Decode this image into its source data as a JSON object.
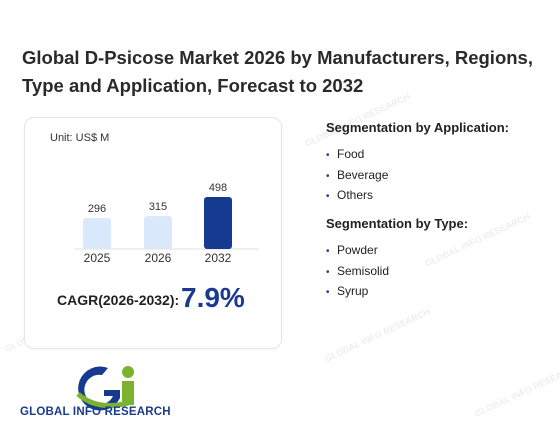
{
  "title": "Global D-Psicose Market 2026 by Manufacturers, Regions, Type and Application, Forecast to 2032",
  "unit": "Unit: US$ M",
  "chart_data": {
    "type": "bar",
    "categories": [
      "2025",
      "2026",
      "2032"
    ],
    "values": [
      296,
      315,
      498
    ],
    "colors": [
      "#d9e8fb",
      "#d9e8fb",
      "#163a8f"
    ],
    "xlabel": "",
    "ylabel": ""
  },
  "cagr": {
    "label": "CAGR(2026-2032):",
    "value": "7.9%"
  },
  "segmentation_application": {
    "heading": "Segmentation by Application:",
    "items": [
      "Food",
      "Beverage",
      "Others"
    ]
  },
  "segmentation_type": {
    "heading": "Segmentation by Type:",
    "items": [
      "Powder",
      "Semisolid",
      "Syrup"
    ]
  },
  "logo": {
    "text": "GLOBAL INFO RESEARCH",
    "watermark": "GLOBAL INFO RESEARCH"
  },
  "colors": {
    "accent": "#163a8f",
    "bar_light": "#d9e8fb",
    "logo_green": "#7ab32e"
  }
}
